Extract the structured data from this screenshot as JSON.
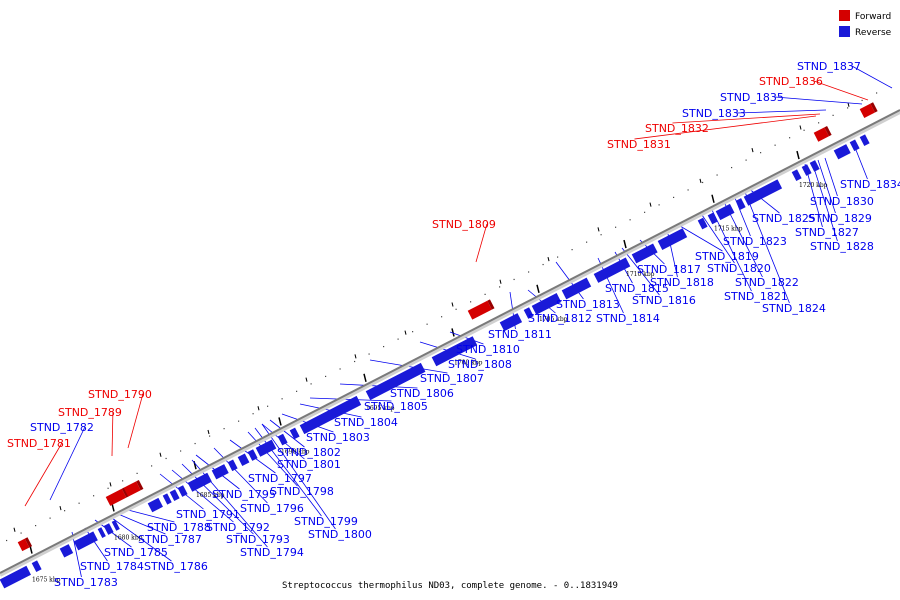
{
  "legend": {
    "forward_label": "Forward",
    "reverse_label": "Reverse",
    "forward_color": "#ee0000",
    "reverse_color": "#0000ee"
  },
  "caption": "Streptococcus thermophilus ND03, complete genome. - 0..1831949",
  "scale_labels": [
    "1675 kbp",
    "1680 kbp",
    "1685 kbp",
    "1690 kbp",
    "1695 kbp",
    "1700 kbp",
    "1705 kbp",
    "1710 kbp",
    "1715 kbp",
    "1720 kbp"
  ],
  "labels": [
    {
      "text": "STND_1781",
      "strand": "forward"
    },
    {
      "text": "STND_1782",
      "strand": "reverse"
    },
    {
      "text": "STND_1783",
      "strand": "reverse"
    },
    {
      "text": "STND_1784",
      "strand": "reverse"
    },
    {
      "text": "STND_1785",
      "strand": "reverse"
    },
    {
      "text": "STND_1786",
      "strand": "reverse"
    },
    {
      "text": "STND_1787",
      "strand": "reverse"
    },
    {
      "text": "STND_1788",
      "strand": "reverse"
    },
    {
      "text": "STND_1789",
      "strand": "forward"
    },
    {
      "text": "STND_1790",
      "strand": "forward"
    },
    {
      "text": "STND_1791",
      "strand": "reverse"
    },
    {
      "text": "STND_1792",
      "strand": "reverse"
    },
    {
      "text": "STND_1793",
      "strand": "reverse"
    },
    {
      "text": "STND_1794",
      "strand": "reverse"
    },
    {
      "text": "STND_1795",
      "strand": "reverse"
    },
    {
      "text": "STND_1796",
      "strand": "reverse"
    },
    {
      "text": "STND_1797",
      "strand": "reverse"
    },
    {
      "text": "STND_1798",
      "strand": "reverse"
    },
    {
      "text": "STND_1799",
      "strand": "reverse"
    },
    {
      "text": "STND_1800",
      "strand": "reverse"
    },
    {
      "text": "STND_1801",
      "strand": "reverse"
    },
    {
      "text": "STND_1802",
      "strand": "reverse"
    },
    {
      "text": "STND_1803",
      "strand": "reverse"
    },
    {
      "text": "STND_1804",
      "strand": "reverse"
    },
    {
      "text": "STND_1805",
      "strand": "reverse"
    },
    {
      "text": "STND_1806",
      "strand": "reverse"
    },
    {
      "text": "STND_1807",
      "strand": "reverse"
    },
    {
      "text": "STND_1808",
      "strand": "reverse"
    },
    {
      "text": "STND_1809",
      "strand": "forward"
    },
    {
      "text": "STND_1810",
      "strand": "reverse"
    },
    {
      "text": "STND_1811",
      "strand": "reverse"
    },
    {
      "text": "STND_1812",
      "strand": "reverse"
    },
    {
      "text": "STND_1813",
      "strand": "reverse"
    },
    {
      "text": "STND_1814",
      "strand": "reverse"
    },
    {
      "text": "STND_1815",
      "strand": "reverse"
    },
    {
      "text": "STND_1816",
      "strand": "reverse"
    },
    {
      "text": "STND_1817",
      "strand": "reverse"
    },
    {
      "text": "STND_1818",
      "strand": "reverse"
    },
    {
      "text": "STND_1819",
      "strand": "reverse"
    },
    {
      "text": "STND_1820",
      "strand": "reverse"
    },
    {
      "text": "STND_1821",
      "strand": "reverse"
    },
    {
      "text": "STND_1822",
      "strand": "reverse"
    },
    {
      "text": "STND_1823",
      "strand": "reverse"
    },
    {
      "text": "STND_1824",
      "strand": "reverse"
    },
    {
      "text": "STND_1825",
      "strand": "reverse"
    },
    {
      "text": "STND_1827",
      "strand": "reverse"
    },
    {
      "text": "STND_1828",
      "strand": "reverse"
    },
    {
      "text": "STND_1829",
      "strand": "reverse"
    },
    {
      "text": "STND_1830",
      "strand": "reverse"
    },
    {
      "text": "STND_1831",
      "strand": "forward"
    },
    {
      "text": "STND_1832",
      "strand": "forward"
    },
    {
      "text": "STND_1833",
      "strand": "reverse"
    },
    {
      "text": "STND_1834",
      "strand": "reverse"
    },
    {
      "text": "STND_1835",
      "strand": "reverse"
    },
    {
      "text": "STND_1836",
      "strand": "forward"
    },
    {
      "text": "STND_1837",
      "strand": "reverse"
    }
  ]
}
